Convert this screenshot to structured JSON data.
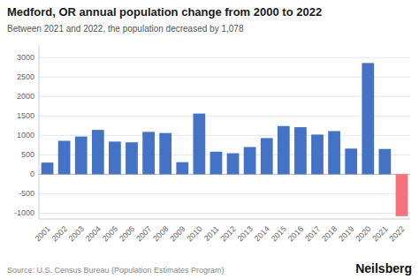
{
  "chart_data": {
    "type": "bar",
    "title": "Medford, OR annual population change from 2000 to 2022",
    "subtitle": "Between 2021 and 2022, the population decreased by 1,078",
    "annotations": [
      "Source: U.S. Census Bureau (Population Estimates Program)",
      "Neilsberg"
    ],
    "categories": [
      "2001",
      "2002",
      "2003",
      "2004",
      "2005",
      "2006",
      "2007",
      "2008",
      "2009",
      "2010",
      "2011",
      "2012",
      "2013",
      "2014",
      "2015",
      "2016",
      "2017",
      "2018",
      "2019",
      "2020",
      "2021",
      "2022"
    ],
    "values": [
      300,
      860,
      970,
      1140,
      840,
      820,
      1090,
      1060,
      310,
      1560,
      580,
      540,
      700,
      930,
      1240,
      1210,
      1020,
      1110,
      660,
      2860,
      650,
      -1078
    ],
    "colors": [
      "#4472C4",
      "#4472C4",
      "#4472C4",
      "#4472C4",
      "#4472C4",
      "#4472C4",
      "#4472C4",
      "#4472C4",
      "#4472C4",
      "#4472C4",
      "#4472C4",
      "#4472C4",
      "#4472C4",
      "#4472C4",
      "#4472C4",
      "#4472C4",
      "#4472C4",
      "#4472C4",
      "#4472C4",
      "#4472C4",
      "#4472C4",
      "#F4727A"
    ],
    "ylim": [
      -1150,
      3300
    ],
    "yticks": [
      -1000,
      -500,
      0,
      500,
      1000,
      1500,
      2000,
      2500,
      3000
    ],
    "grid": true
  }
}
